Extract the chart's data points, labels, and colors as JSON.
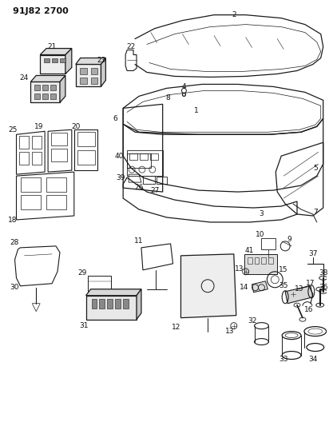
{
  "title": "91J82 2700",
  "bg_color": "#ffffff",
  "fig_width": 4.12,
  "fig_height": 5.33,
  "dpi": 100,
  "label_fontsize": 6.5,
  "label_color": "#111111",
  "line_color": "#1a1a1a",
  "line_width": 0.9,
  "title_fontsize": 8
}
